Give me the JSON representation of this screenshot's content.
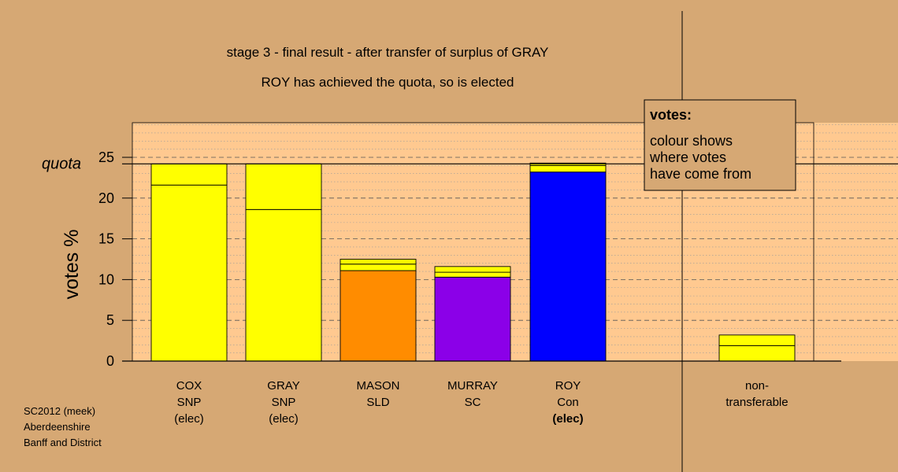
{
  "chart_data": {
    "type": "bar",
    "title": "stage 3 - final result - after transfer of surplus of GRAY",
    "subtitle": "ROY has achieved the quota, so is elected",
    "ylabel": "votes %",
    "ylim": [
      0,
      30
    ],
    "yticks": [
      0,
      5,
      10,
      15,
      20,
      25
    ],
    "quota": 24.2,
    "quota_label": "quota",
    "grid": true,
    "categories": [
      {
        "lines": [
          "COX",
          "SNP",
          "(elec)"
        ],
        "bold_line": null
      },
      {
        "lines": [
          "GRAY",
          "SNP",
          "(elec)"
        ],
        "bold_line": null
      },
      {
        "lines": [
          "MASON",
          "SLD"
        ],
        "bold_line": null
      },
      {
        "lines": [
          "MURRAY",
          "SC"
        ],
        "bold_line": null
      },
      {
        "lines": [
          "ROY",
          "Con",
          "(elec)"
        ],
        "bold_line": 2
      },
      {
        "lines": [
          "non-",
          "transferable"
        ],
        "bold_line": null
      }
    ],
    "bars": [
      {
        "category": "COX",
        "segments": [
          {
            "value": 21.6,
            "color": "#ffff00"
          },
          {
            "value": 2.6,
            "color": "#ffff00"
          }
        ]
      },
      {
        "category": "GRAY",
        "segments": [
          {
            "value": 18.6,
            "color": "#ffff00"
          },
          {
            "value": 5.6,
            "color": "#ffff00"
          }
        ]
      },
      {
        "category": "MASON",
        "segments": [
          {
            "value": 11.1,
            "color": "#ff8c00"
          },
          {
            "value": 0.8,
            "color": "#ffff00"
          },
          {
            "value": 0.6,
            "color": "#ffff00"
          }
        ]
      },
      {
        "category": "MURRAY",
        "segments": [
          {
            "value": 10.3,
            "color": "#8b00e8"
          },
          {
            "value": 0.6,
            "color": "#ffff00"
          },
          {
            "value": 0.7,
            "color": "#ffff00"
          }
        ]
      },
      {
        "category": "ROY",
        "segments": [
          {
            "value": 23.2,
            "color": "#0000ff"
          },
          {
            "value": 0.8,
            "color": "#ffff00"
          },
          {
            "value": 0.3,
            "color": "#ffff00"
          }
        ]
      },
      {
        "category": "non-transferable",
        "segments": [
          {
            "value": 1.9,
            "color": "#ffff00"
          },
          {
            "value": 1.3,
            "color": "#ffff00"
          }
        ]
      }
    ],
    "legend": {
      "position": "top-right",
      "title": "votes:",
      "lines": [
        "colour shows",
        "where votes",
        "have come from"
      ]
    }
  },
  "footer": [
    "SC2012 (meek)",
    "Aberdeenshire",
    "Banff and District"
  ]
}
